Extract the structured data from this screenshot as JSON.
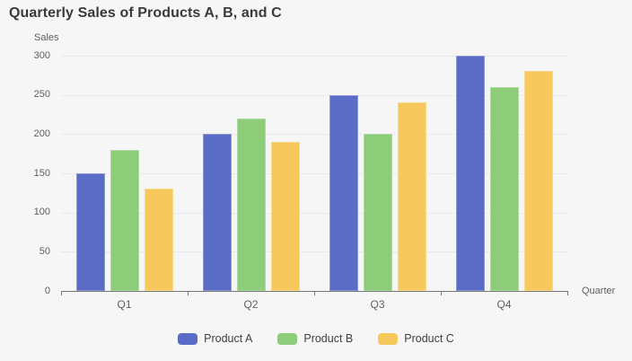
{
  "title": "Quarterly Sales of Products A, B, and C",
  "colors": {
    "background": "#f6f6f6",
    "title_text": "#3a3a3a",
    "axis_text": "#605e5c",
    "axis_line": "#777777",
    "gridline": "#e9e9f1",
    "product_a": "#5b6cc6",
    "product_b": "#8dcc78",
    "product_c": "#f7c95d"
  },
  "chart_data": {
    "type": "bar",
    "title": "Quarterly Sales of Products A, B, and C",
    "xlabel": "Quarter",
    "ylabel": "Sales",
    "categories": [
      "Q1",
      "Q2",
      "Q3",
      "Q4"
    ],
    "series": [
      {
        "name": "Product A",
        "color": "#5b6cc6",
        "values": [
          150,
          200,
          250,
          300
        ]
      },
      {
        "name": "Product B",
        "color": "#8dcc78",
        "values": [
          180,
          220,
          200,
          260
        ]
      },
      {
        "name": "Product C",
        "color": "#f7c95d",
        "values": [
          130,
          190,
          240,
          280
        ]
      }
    ],
    "ylim": [
      0,
      300
    ],
    "y_ticks": [
      0,
      50,
      100,
      150,
      200,
      250,
      300
    ],
    "grid": true,
    "legend_position": "bottom"
  }
}
